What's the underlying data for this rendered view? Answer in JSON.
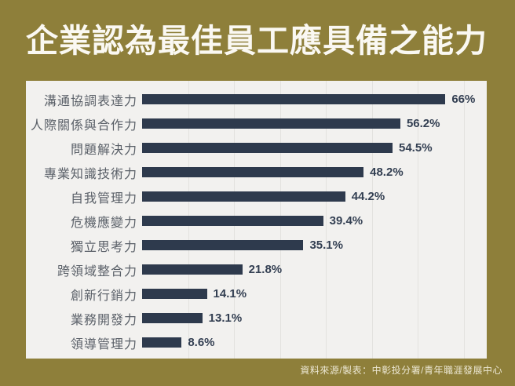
{
  "title": "企業認為最佳員工應具備之能力",
  "source": "資料來源/製表：中彰投分署/青年職涯發展中心",
  "colors": {
    "background": "#8e7f3a",
    "panel": "#f2f1ef",
    "bar": "#2e3a4d",
    "gridline": "#e3e2df",
    "category_label": "#5a6068",
    "value_label": "#333f52",
    "title_text": "#faf8f2",
    "source_text": "#ece7d3"
  },
  "chart_data": {
    "type": "bar",
    "orientation": "horizontal",
    "title": "企業認為最佳員工應具備之能力",
    "categories": [
      "溝通協調表達力",
      "人際關係與合作力",
      "問題解決力",
      "專業知識技術力",
      "自我管理力",
      "危機應變力",
      "獨立思考力",
      "跨領域整合力",
      "創新行銷力",
      "業務開發力",
      "領導管理力"
    ],
    "values": [
      66,
      56.2,
      54.5,
      48.2,
      44.2,
      39.4,
      35.1,
      21.8,
      14.1,
      13.1,
      8.6
    ],
    "value_labels": [
      "66%",
      "56.2%",
      "54.5%",
      "48.2%",
      "44.2%",
      "39.4%",
      "35.1%",
      "21.8%",
      "14.1%",
      "13.1%",
      "8.6%"
    ],
    "xlabel": "",
    "ylabel": "",
    "xlim": [
      0,
      75
    ],
    "gridline_step": 10,
    "grid": true,
    "legend": false
  }
}
